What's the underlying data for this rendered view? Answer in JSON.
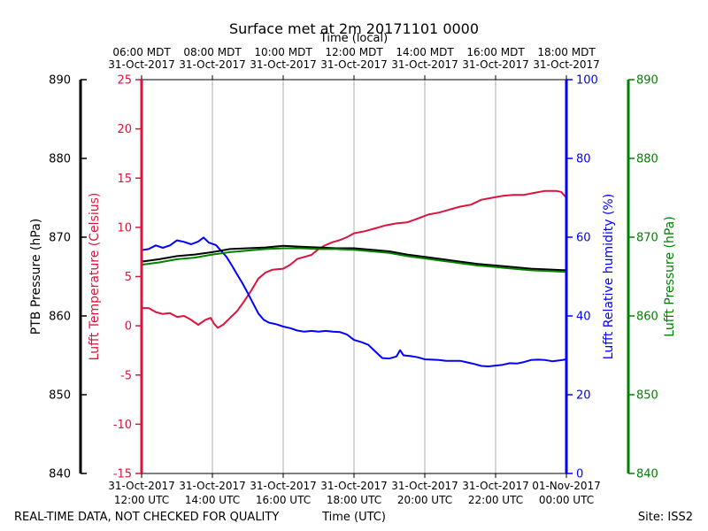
{
  "chart_data": {
    "type": "line",
    "title": "Surface met at 2m 20171101 0000",
    "top_axis_label": "Time (local)",
    "xlabel": "Time (UTC)",
    "footer_left": "REAL-TIME DATA, NOT CHECKED FOR QUALITY",
    "footer_right": "Site: ISS2",
    "x_range_utc_hours": [
      12,
      24
    ],
    "bottom_ticks": [
      {
        "x": 12,
        "date": "31-Oct-2017",
        "time": "12:00 UTC"
      },
      {
        "x": 14,
        "date": "31-Oct-2017",
        "time": "14:00 UTC"
      },
      {
        "x": 16,
        "date": "31-Oct-2017",
        "time": "16:00 UTC"
      },
      {
        "x": 18,
        "date": "31-Oct-2017",
        "time": "18:00 UTC"
      },
      {
        "x": 20,
        "date": "31-Oct-2017",
        "time": "20:00 UTC"
      },
      {
        "x": 22,
        "date": "31-Oct-2017",
        "time": "22:00 UTC"
      },
      {
        "x": 24,
        "date": "01-Nov-2017",
        "time": "00:00 UTC"
      }
    ],
    "top_ticks": [
      {
        "x": 12,
        "time": "06:00 MDT",
        "date": "31-Oct-2017"
      },
      {
        "x": 14,
        "time": "08:00 MDT",
        "date": "31-Oct-2017"
      },
      {
        "x": 16,
        "time": "10:00 MDT",
        "date": "31-Oct-2017"
      },
      {
        "x": 18,
        "time": "12:00 MDT",
        "date": "31-Oct-2017"
      },
      {
        "x": 20,
        "time": "14:00 MDT",
        "date": "31-Oct-2017"
      },
      {
        "x": 22,
        "time": "16:00 MDT",
        "date": "31-Oct-2017"
      },
      {
        "x": 24,
        "time": "18:00 MDT",
        "date": "31-Oct-2017"
      }
    ],
    "grid": "vertical",
    "axes": {
      "ptb": {
        "label": "PTB Pressure (hPa)",
        "range": [
          840,
          890
        ],
        "ticks": [
          840,
          850,
          860,
          870,
          880,
          890
        ],
        "color": "#000000"
      },
      "temp": {
        "label": "Lufft Temperature (Celsius)",
        "range": [
          -15,
          25
        ],
        "ticks": [
          -15,
          -10,
          -5,
          0,
          5,
          10,
          15,
          20,
          25
        ],
        "color": "#dc143c"
      },
      "rh": {
        "label": "Lufft Relative humidity (%)",
        "range": [
          0,
          100
        ],
        "ticks": [
          0,
          20,
          40,
          60,
          80,
          100
        ],
        "color": "#0000ff"
      },
      "lufft_p": {
        "label": "Lufft Pressure (hPa)",
        "range": [
          840,
          890
        ],
        "ticks": [
          840,
          850,
          860,
          870,
          880,
          890
        ],
        "color": "#008000"
      }
    },
    "series": [
      {
        "key": "temp",
        "axis": "temp",
        "color": "#dc143c",
        "points": [
          [
            12,
            1.8
          ],
          [
            12.2,
            1.8
          ],
          [
            12.4,
            1.4
          ],
          [
            12.6,
            1.2
          ],
          [
            12.8,
            1.3
          ],
          [
            13.0,
            0.9
          ],
          [
            13.2,
            1.0
          ],
          [
            13.4,
            0.6
          ],
          [
            13.6,
            0.1
          ],
          [
            13.8,
            0.6
          ],
          [
            13.95,
            0.8
          ],
          [
            14.05,
            0.2
          ],
          [
            14.15,
            -0.2
          ],
          [
            14.3,
            0.1
          ],
          [
            14.5,
            0.8
          ],
          [
            14.7,
            1.5
          ],
          [
            14.9,
            2.5
          ],
          [
            15.1,
            3.6
          ],
          [
            15.3,
            4.8
          ],
          [
            15.5,
            5.4
          ],
          [
            15.7,
            5.7
          ],
          [
            16.0,
            5.8
          ],
          [
            16.2,
            6.2
          ],
          [
            16.4,
            6.8
          ],
          [
            16.6,
            7.0
          ],
          [
            16.8,
            7.2
          ],
          [
            17.0,
            7.8
          ],
          [
            17.2,
            8.2
          ],
          [
            17.4,
            8.5
          ],
          [
            17.6,
            8.7
          ],
          [
            17.8,
            9.0
          ],
          [
            18.0,
            9.4
          ],
          [
            18.3,
            9.6
          ],
          [
            18.6,
            9.9
          ],
          [
            18.9,
            10.2
          ],
          [
            19.2,
            10.4
          ],
          [
            19.5,
            10.5
          ],
          [
            19.8,
            10.9
          ],
          [
            20.1,
            11.3
          ],
          [
            20.4,
            11.5
          ],
          [
            20.7,
            11.8
          ],
          [
            21.0,
            12.1
          ],
          [
            21.3,
            12.3
          ],
          [
            21.6,
            12.8
          ],
          [
            21.9,
            13.0
          ],
          [
            22.2,
            13.2
          ],
          [
            22.5,
            13.3
          ],
          [
            22.8,
            13.3
          ],
          [
            23.1,
            13.5
          ],
          [
            23.4,
            13.7
          ],
          [
            23.7,
            13.7
          ],
          [
            23.85,
            13.6
          ],
          [
            24.0,
            13.0
          ]
        ]
      },
      {
        "key": "rh",
        "axis": "rh",
        "color": "#0000ff",
        "points": [
          [
            12,
            56.7
          ],
          [
            12.2,
            57.0
          ],
          [
            12.4,
            57.9
          ],
          [
            12.6,
            57.3
          ],
          [
            12.8,
            57.9
          ],
          [
            13.0,
            59.2
          ],
          [
            13.2,
            58.8
          ],
          [
            13.4,
            58.2
          ],
          [
            13.6,
            58.9
          ],
          [
            13.75,
            59.9
          ],
          [
            13.9,
            58.6
          ],
          [
            14.1,
            58.0
          ],
          [
            14.25,
            56.5
          ],
          [
            14.4,
            55.0
          ],
          [
            14.55,
            52.8
          ],
          [
            14.7,
            50.5
          ],
          [
            14.85,
            48.3
          ],
          [
            15.0,
            45.8
          ],
          [
            15.15,
            43.2
          ],
          [
            15.3,
            40.6
          ],
          [
            15.45,
            39.0
          ],
          [
            15.6,
            38.3
          ],
          [
            15.8,
            37.9
          ],
          [
            16.0,
            37.3
          ],
          [
            16.2,
            36.9
          ],
          [
            16.4,
            36.3
          ],
          [
            16.6,
            36.0
          ],
          [
            16.8,
            36.2
          ],
          [
            17.0,
            36.0
          ],
          [
            17.2,
            36.2
          ],
          [
            17.4,
            36.0
          ],
          [
            17.6,
            35.9
          ],
          [
            17.8,
            35.3
          ],
          [
            18.0,
            33.9
          ],
          [
            18.2,
            33.4
          ],
          [
            18.4,
            32.7
          ],
          [
            18.6,
            31.0
          ],
          [
            18.8,
            29.3
          ],
          [
            19.0,
            29.2
          ],
          [
            19.2,
            29.7
          ],
          [
            19.3,
            31.3
          ],
          [
            19.4,
            30.0
          ],
          [
            19.6,
            29.8
          ],
          [
            19.8,
            29.5
          ],
          [
            20.0,
            29.0
          ],
          [
            20.2,
            28.9
          ],
          [
            20.4,
            28.8
          ],
          [
            20.6,
            28.6
          ],
          [
            20.8,
            28.6
          ],
          [
            21.0,
            28.6
          ],
          [
            21.2,
            28.2
          ],
          [
            21.4,
            27.8
          ],
          [
            21.6,
            27.3
          ],
          [
            21.8,
            27.2
          ],
          [
            22.0,
            27.4
          ],
          [
            22.2,
            27.6
          ],
          [
            22.4,
            28.0
          ],
          [
            22.6,
            27.9
          ],
          [
            22.8,
            28.3
          ],
          [
            23.0,
            28.8
          ],
          [
            23.2,
            28.9
          ],
          [
            23.4,
            28.8
          ],
          [
            23.6,
            28.5
          ],
          [
            23.8,
            28.7
          ],
          [
            24.0,
            29.0
          ]
        ]
      },
      {
        "key": "ptb",
        "axis": "ptb",
        "color": "#000000",
        "points": [
          [
            12,
            866.9
          ],
          [
            12.5,
            867.2
          ],
          [
            13.0,
            867.6
          ],
          [
            13.5,
            867.8
          ],
          [
            14.0,
            868.1
          ],
          [
            14.5,
            868.5
          ],
          [
            15.0,
            868.6
          ],
          [
            15.5,
            868.7
          ],
          [
            16.0,
            868.9
          ],
          [
            16.5,
            868.8
          ],
          [
            17.0,
            868.7
          ],
          [
            17.5,
            868.6
          ],
          [
            18.0,
            868.6
          ],
          [
            18.5,
            868.4
          ],
          [
            19.0,
            868.2
          ],
          [
            19.5,
            867.8
          ],
          [
            20.0,
            867.5
          ],
          [
            20.5,
            867.2
          ],
          [
            21.0,
            866.9
          ],
          [
            21.5,
            866.6
          ],
          [
            22.0,
            866.4
          ],
          [
            22.5,
            866.2
          ],
          [
            23.0,
            866.0
          ],
          [
            23.5,
            865.9
          ],
          [
            24.0,
            865.8
          ]
        ]
      },
      {
        "key": "lufft_p",
        "axis": "lufft_p",
        "color": "#008000",
        "points": [
          [
            12,
            866.5
          ],
          [
            12.5,
            866.8
          ],
          [
            13.0,
            867.2
          ],
          [
            13.5,
            867.4
          ],
          [
            14.0,
            867.8
          ],
          [
            14.5,
            868.1
          ],
          [
            15.0,
            868.3
          ],
          [
            15.5,
            868.5
          ],
          [
            16.0,
            868.6
          ],
          [
            16.5,
            868.6
          ],
          [
            17.0,
            868.5
          ],
          [
            17.5,
            868.5
          ],
          [
            18.0,
            868.4
          ],
          [
            18.5,
            868.2
          ],
          [
            19.0,
            868.0
          ],
          [
            19.5,
            867.6
          ],
          [
            20.0,
            867.3
          ],
          [
            20.5,
            867.0
          ],
          [
            21.0,
            866.7
          ],
          [
            21.5,
            866.4
          ],
          [
            22.0,
            866.2
          ],
          [
            22.5,
            866.0
          ],
          [
            23.0,
            865.8
          ],
          [
            23.5,
            865.7
          ],
          [
            24.0,
            865.6
          ]
        ]
      }
    ]
  }
}
